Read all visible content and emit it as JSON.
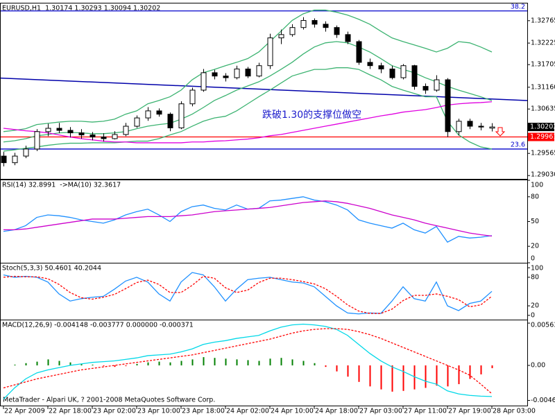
{
  "chart_data": [
    {
      "type": "candlestick",
      "title": "EURUSD,H1  1.30174 1.30293 1.30094 1.30202",
      "categories": [
        "22 Apr 2009",
        null,
        null,
        null,
        "22 Apr 18:00",
        null,
        null,
        null,
        "23 Apr 02:00",
        null,
        null,
        null,
        "23 Apr 10:00",
        null,
        null,
        null,
        "23 Apr 18:00",
        null,
        null,
        null,
        "24 Apr 02:00",
        null,
        null,
        null,
        "24 Apr 10:00",
        null,
        null,
        null,
        "24 Apr 18:00",
        null,
        null,
        null,
        "27 Apr 03:00",
        null,
        null,
        null,
        "27 Apr 11:00",
        null,
        null,
        null,
        "27 Apr 19:00",
        null,
        null,
        null,
        "28 Apr 03:00"
      ],
      "open": [
        1.295,
        1.2934,
        1.295,
        1.2967,
        1.3009,
        1.3017,
        1.3012,
        1.3006,
        1.3001,
        1.2996,
        1.2992,
        1.3002,
        1.3022,
        1.3042,
        1.3059,
        1.3051,
        1.3018,
        1.3076,
        1.3109,
        1.3151,
        1.3143,
        1.3139,
        1.316,
        1.3143,
        1.3168,
        1.3235,
        1.3243,
        1.326,
        1.3277,
        1.3268,
        1.326,
        1.3243,
        1.3226,
        1.3176,
        1.3168,
        1.316,
        1.3139,
        1.3168,
        1.3118,
        1.3109,
        1.3134,
        1.3009,
        1.3034,
        1.3022,
        1.30174
      ],
      "high": [
        1.296,
        1.2958,
        1.2975,
        1.3015,
        1.3028,
        1.303,
        1.302,
        1.3015,
        1.3008,
        1.3005,
        1.301,
        1.303,
        1.3048,
        1.3068,
        1.3065,
        1.3055,
        1.3082,
        1.3115,
        1.316,
        1.3158,
        1.315,
        1.3168,
        1.3165,
        1.3175,
        1.3245,
        1.3255,
        1.3268,
        1.3285,
        1.3282,
        1.3275,
        1.3265,
        1.325,
        1.323,
        1.3185,
        1.3175,
        1.3168,
        1.3172,
        1.317,
        1.3125,
        1.3145,
        1.3138,
        1.304,
        1.304,
        1.303,
        1.30293
      ],
      "low": [
        1.2925,
        1.2928,
        1.2945,
        1.2962,
        1.2998,
        1.3005,
        1.2995,
        1.2992,
        1.2988,
        1.2985,
        1.299,
        1.2998,
        1.3018,
        1.3035,
        1.3045,
        1.301,
        1.3015,
        1.307,
        1.3105,
        1.3135,
        1.313,
        1.3135,
        1.3138,
        1.314,
        1.316,
        1.322,
        1.3238,
        1.3255,
        1.326,
        1.325,
        1.3235,
        1.322,
        1.317,
        1.316,
        1.315,
        1.3135,
        1.3135,
        1.311,
        1.31,
        1.3105,
        1.2996,
        1.3,
        1.3015,
        1.3012,
        1.30094
      ],
      "close": [
        1.2934,
        1.295,
        1.2967,
        1.3009,
        1.3017,
        1.3012,
        1.3006,
        1.3001,
        1.2996,
        1.2992,
        1.3002,
        1.3022,
        1.3042,
        1.3059,
        1.3051,
        1.3018,
        1.3076,
        1.3109,
        1.3151,
        1.3143,
        1.3139,
        1.316,
        1.3143,
        1.3168,
        1.3235,
        1.3243,
        1.326,
        1.3277,
        1.3268,
        1.326,
        1.3243,
        1.3226,
        1.3176,
        1.3168,
        1.316,
        1.3139,
        1.3168,
        1.3118,
        1.3109,
        1.3134,
        1.3009,
        1.3034,
        1.3022,
        1.302,
        1.30202
      ],
      "bull_color": "#ffffff",
      "bear_color": "#000000",
      "wick_color": "#000000",
      "series": [
        {
          "color": "#3cb371",
          "values": [
            1.3009,
            1.3012,
            1.3016,
            1.3026,
            1.3029,
            1.3032,
            1.3034,
            1.3034,
            1.3032,
            1.3034,
            1.3039,
            1.3051,
            1.3059,
            1.3076,
            1.3084,
            1.3093,
            1.3109,
            1.3134,
            1.3151,
            1.3159,
            1.3168,
            1.3176,
            1.3185,
            1.3201,
            1.3226,
            1.3251,
            1.3277,
            1.3293,
            1.3302,
            1.3302,
            1.3297,
            1.329,
            1.328,
            1.3268,
            1.3251,
            1.3235,
            1.3226,
            1.3218,
            1.321,
            1.3201,
            1.321,
            1.3226,
            1.3223,
            1.3213,
            1.3201
          ]
        },
        {
          "color": "#3cb371",
          "values": [
            1.2984,
            1.2987,
            1.2992,
            1.2999,
            1.3002,
            1.3006,
            1.3007,
            1.3006,
            1.3004,
            1.3004,
            1.3006,
            1.3009,
            1.3016,
            1.3022,
            1.3026,
            1.3029,
            1.3039,
            1.3051,
            1.3067,
            1.3084,
            1.3096,
            1.3109,
            1.3119,
            1.3129,
            1.3143,
            1.3159,
            1.3176,
            1.3196,
            1.3213,
            1.3223,
            1.3226,
            1.3223,
            1.3213,
            1.3201,
            1.3185,
            1.3168,
            1.3159,
            1.3151,
            1.3139,
            1.3129,
            1.3118,
            1.3109,
            1.3101,
            1.3093,
            1.3084
          ]
        },
        {
          "color": "#3cb371",
          "values": [
            1.2962,
            1.2965,
            1.2969,
            1.2972,
            1.2976,
            1.2979,
            1.2981,
            1.2981,
            1.2982,
            1.2982,
            1.2982,
            1.2984,
            1.2986,
            1.2986,
            1.2992,
            1.3001,
            1.3009,
            1.3022,
            1.3034,
            1.3042,
            1.3046,
            1.3059,
            1.3076,
            1.3093,
            1.3109,
            1.3126,
            1.3143,
            1.3151,
            1.3159,
            1.3159,
            1.3163,
            1.3163,
            1.3159,
            1.3146,
            1.3134,
            1.3118,
            1.3109,
            1.3101,
            1.3093,
            1.3093,
            1.3034,
            1.3001,
            1.2984,
            1.2972,
            1.2967
          ]
        },
        {
          "color": "#e000e0",
          "values": [
            1.3017,
            1.3014,
            1.3011,
            1.3009,
            1.3006,
            1.3001,
            1.2996,
            1.2992,
            1.2989,
            1.2986,
            1.2984,
            1.2984,
            1.2982,
            1.2982,
            1.2982,
            1.2982,
            1.2982,
            1.2984,
            1.2984,
            1.2986,
            1.2987,
            1.2989,
            1.2991,
            1.2994,
            1.2999,
            1.3002,
            1.3007,
            1.3012,
            1.3017,
            1.3022,
            1.3027,
            1.3032,
            1.3037,
            1.3042,
            1.3047,
            1.3051,
            1.3056,
            1.3059,
            1.3062,
            1.3067,
            1.3073,
            1.3076,
            1.3078,
            1.3079,
            1.3081
          ]
        }
      ],
      "trendline": {
        "color": "#0000aa",
        "values": [
          1.3138,
          1.3084
        ]
      },
      "hlines": [
        {
          "value": 1.33,
          "label": "38.2",
          "color": "#0000cc",
          "label_at": "line"
        },
        {
          "value": 1.2967,
          "label": "23.6",
          "color": "#0000cc",
          "label_at": "line"
        },
        {
          "value": 1.29961,
          "label": "1.29961",
          "color": "#ff0000",
          "label_at": "axis"
        }
      ],
      "annotation": "跌破1.30的支撑位做空",
      "annotation_color": "#1a1acc",
      "ylim": [
        1.2895,
        1.3318
      ],
      "yticks": [
        1.32765,
        1.32225,
        1.31705,
        {
          "value": 1.3116,
          "label": "1.31160"
        },
        1.30635,
        1.29565,
        {
          "value": 1.2903,
          "label": "1.29030"
        }
      ]
    },
    {
      "type": "line",
      "title": "RSI(14) 32.8991  ->MA(10) 32.3617",
      "series": [
        {
          "color": "#1e90ff",
          "values": [
            38,
            40,
            45,
            55,
            58,
            57,
            55,
            52,
            50,
            48,
            52,
            58,
            62,
            65,
            58,
            50,
            62,
            68,
            70,
            66,
            64,
            70,
            65,
            66,
            75,
            76,
            78,
            80,
            76,
            74,
            70,
            64,
            52,
            48,
            45,
            42,
            48,
            40,
            36,
            44,
            25,
            32,
            30,
            31,
            32.8991
          ]
        },
        {
          "color": "#cc00cc",
          "values": [
            40,
            40,
            41,
            43,
            45,
            47,
            49,
            51,
            53,
            53,
            53,
            54,
            55,
            56,
            56,
            56,
            57,
            58,
            60,
            62,
            63,
            64,
            65,
            66,
            67,
            69,
            71,
            73,
            74,
            75,
            74,
            72,
            69,
            66,
            62,
            58,
            55,
            52,
            48,
            45,
            42,
            39,
            36,
            34,
            32.3617
          ]
        }
      ],
      "ylim": [
        0,
        100
      ],
      "yticks": [
        100,
        80,
        50,
        20,
        0
      ]
    },
    {
      "type": "line",
      "title": "Stoch(5,3,3) 50.4601 40.2044",
      "series": [
        {
          "color": "#1e90ff",
          "values": [
            85,
            80,
            82,
            80,
            70,
            45,
            30,
            35,
            38,
            40,
            55,
            72,
            80,
            70,
            45,
            30,
            70,
            90,
            85,
            60,
            30,
            55,
            75,
            78,
            80,
            75,
            70,
            68,
            60,
            40,
            20,
            5,
            3,
            5,
            4,
            30,
            60,
            35,
            30,
            70,
            20,
            10,
            25,
            30,
            50.4601
          ]
        },
        {
          "color": "#ff0000",
          "dash": true,
          "values": [
            80,
            82,
            81,
            81,
            77,
            65,
            48,
            37,
            34,
            38,
            44,
            56,
            69,
            74,
            65,
            48,
            48,
            63,
            82,
            78,
            58,
            48,
            53,
            69,
            78,
            78,
            75,
            71,
            66,
            56,
            40,
            22,
            9,
            4,
            4,
            13,
            31,
            42,
            42,
            45,
            40,
            33,
            18,
            22,
            40.2044
          ]
        }
      ],
      "ylim": [
        -9,
        109
      ],
      "yticks": [
        100,
        80,
        20,
        0
      ]
    },
    {
      "type": "macd",
      "title": "MACD(12,26,9) -0.004148 -0.003777 0.000000 -0.000371",
      "histogram": {
        "up_color": "#008000",
        "down_color": "#ff0000",
        "values": [
          0,
          0.0001,
          0.0003,
          0.0005,
          0.0008,
          0.0006,
          0.0004,
          0.0002,
          0.0001,
          -0.0001,
          -0.0002,
          -0.0001,
          0.0002,
          0.0004,
          0.0005,
          0.0004,
          0.0006,
          0.0008,
          0.0011,
          0.001,
          0.0009,
          0.0008,
          0.0007,
          0.0006,
          0.0009,
          0.001,
          0.0008,
          0.0006,
          0.0003,
          -0.0002,
          -0.0008,
          -0.0015,
          -0.0022,
          -0.0028,
          -0.0032,
          -0.0035,
          -0.0034,
          -0.0032,
          -0.003,
          -0.0027,
          -0.0028,
          -0.0025,
          -0.0018,
          -0.0012,
          -0.000371
        ]
      },
      "series": [
        {
          "color": "#00d8e8",
          "values": [
            -0.0045,
            -0.003,
            -0.0018,
            -0.001,
            -0.0006,
            -0.0003,
            0,
            0.0002,
            0.0004,
            0.0005,
            0.0006,
            0.0008,
            0.001,
            0.0013,
            0.0014,
            0.0015,
            0.0018,
            0.0022,
            0.0028,
            0.0031,
            0.0033,
            0.0036,
            0.0038,
            0.004,
            0.0046,
            0.0051,
            0.0054,
            0.0055,
            0.0054,
            0.0052,
            0.0048,
            0.004,
            0.0028,
            0.0016,
            0.0006,
            -0.0002,
            -0.0008,
            -0.0015,
            -0.0021,
            -0.0025,
            -0.0034,
            -0.0038,
            -0.004,
            -0.0041,
            -0.004148
          ]
        },
        {
          "color": "#ff0000",
          "dash": true,
          "values": [
            -0.003,
            -0.0026,
            -0.0022,
            -0.0018,
            -0.0015,
            -0.0012,
            -0.0009,
            -0.0006,
            -0.0004,
            -0.0002,
            0,
            0.0002,
            0.0004,
            0.0006,
            0.0008,
            0.001,
            0.0012,
            0.0014,
            0.0017,
            0.002,
            0.0023,
            0.0026,
            0.0029,
            0.0032,
            0.0035,
            0.0039,
            0.0043,
            0.0046,
            0.0048,
            0.0049,
            0.0049,
            0.0048,
            0.0045,
            0.0041,
            0.0036,
            0.003,
            0.0024,
            0.0018,
            0.0012,
            0.0006,
            0,
            -0.0006,
            -0.0013,
            -0.0025,
            -0.003777
          ]
        }
      ],
      "ylim": [
        -0.00536,
        0.00601
      ],
      "yticks": [
        0.005637,
        {
          "value": 0,
          "label": "0.00"
        },
        -0.00467
      ]
    }
  ],
  "footer": "MetaTrader - Alpari UK, ? 2001-2008 MetaQuotes Software Corp."
}
